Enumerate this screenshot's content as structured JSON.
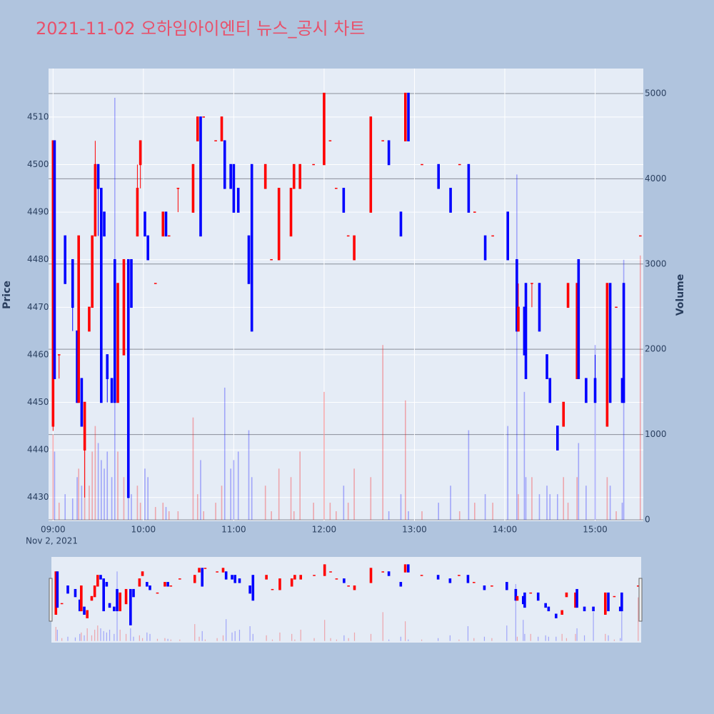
{
  "chart_data": {
    "type": "candlestick",
    "title": "2021-11-02 오하임아이엔티 뉴스_공시 차트",
    "y_label": "Price",
    "y2_label": "Volume",
    "x_sublabel": "Nov 2, 2021",
    "increasing_color": "#ff0000",
    "decreasing_color": "#0000ff",
    "xlim": [
      "08:57",
      "15:32"
    ],
    "xticks": [
      "09:00",
      "10:00",
      "11:00",
      "12:00",
      "13:00",
      "14:00",
      "15:00"
    ],
    "ylim": [
      4425,
      4520.2
    ],
    "yticks": [
      4430,
      4440,
      4450,
      4460,
      4470,
      4480,
      4490,
      4500,
      4510
    ],
    "y2lim": [
      -17,
      5293
    ],
    "y2ticks": [
      0,
      1000,
      2000,
      3000,
      4000,
      5000
    ],
    "x": [
      "09:00",
      "09:01",
      "09:04",
      "09:08",
      "09:13",
      "09:16",
      "09:17",
      "09:19",
      "09:21",
      "09:24",
      "09:26",
      "09:28",
      "09:30",
      "09:32",
      "09:34",
      "09:36",
      "09:39",
      "09:41",
      "09:43",
      "09:47",
      "09:50",
      "09:52",
      "09:56",
      "09:58",
      "10:01",
      "10:03",
      "10:08",
      "10:13",
      "10:15",
      "10:17",
      "10:23",
      "10:33",
      "10:36",
      "10:38",
      "10:40",
      "10:48",
      "10:52",
      "10:54",
      "10:58",
      "11:00",
      "11:03",
      "11:10",
      "11:12",
      "11:21",
      "11:25",
      "11:30",
      "11:38",
      "11:40",
      "11:44",
      "11:53",
      "12:00",
      "12:04",
      "12:08",
      "12:13",
      "12:16",
      "12:20",
      "12:31",
      "12:39",
      "12:43",
      "12:51",
      "12:54",
      "12:56",
      "13:05",
      "13:16",
      "13:24",
      "13:30",
      "13:36",
      "13:40",
      "13:47",
      "13:52",
      "14:02",
      "14:08",
      "14:09",
      "14:13",
      "14:14",
      "14:18",
      "14:23",
      "14:28",
      "14:30",
      "14:35",
      "14:39",
      "14:42",
      "14:48",
      "14:49",
      "14:54",
      "15:00",
      "15:08",
      "15:10",
      "15:14",
      "15:18",
      "15:19",
      "15:30"
    ],
    "open": [
      4445,
      4505,
      4460,
      4485,
      4480,
      4465,
      4450,
      4455,
      4440,
      4465,
      4470,
      4485,
      4500,
      4495,
      4490,
      4460,
      4455,
      4480,
      4450,
      4460,
      4480,
      4480,
      4485,
      4500,
      4490,
      4485,
      4475,
      4485,
      4490,
      4485,
      4495,
      4490,
      4505,
      4510,
      4510,
      4505,
      4505,
      4505,
      4500,
      4500,
      4495,
      4485,
      4500,
      4495,
      4480,
      4480,
      4485,
      4495,
      4495,
      4500,
      4500,
      4505,
      4495,
      4495,
      4485,
      4480,
      4490,
      4505,
      4505,
      4490,
      4505,
      4515,
      4500,
      4500,
      4495,
      4500,
      4500,
      4490,
      4485,
      4485,
      4490,
      4480,
      4465,
      4470,
      4475,
      4475,
      4475,
      4460,
      4455,
      4445,
      4445,
      4470,
      4455,
      4480,
      4455,
      4455,
      4445,
      4475,
      4470,
      4455,
      4475,
      4485
    ],
    "high": [
      4505,
      4505,
      4460,
      4485,
      4480,
      4465,
      4485,
      4455,
      4450,
      4470,
      4485,
      4505,
      4500,
      4495,
      4490,
      4460,
      4455,
      4480,
      4475,
      4480,
      4480,
      4480,
      4500,
      4505,
      4490,
      4485,
      4475,
      4490,
      4490,
      4485,
      4495,
      4500,
      4510,
      4510,
      4510,
      4505,
      4510,
      4505,
      4500,
      4500,
      4495,
      4485,
      4500,
      4500,
      4480,
      4495,
      4495,
      4500,
      4500,
      4500,
      4515,
      4505,
      4495,
      4495,
      4485,
      4485,
      4510,
      4505,
      4505,
      4490,
      4515,
      4515,
      4500,
      4500,
      4495,
      4500,
      4500,
      4490,
      4485,
      4485,
      4490,
      4480,
      4475,
      4470,
      4475,
      4475,
      4475,
      4460,
      4455,
      4445,
      4450,
      4475,
      4475,
      4480,
      4455,
      4460,
      4475,
      4475,
      4470,
      4455,
      4475,
      4485
    ],
    "low": [
      4444,
      4455,
      4455,
      4475,
      4465,
      4450,
      4450,
      4445,
      4430,
      4465,
      4470,
      4485,
      4485,
      4450,
      4485,
      4450,
      4450,
      4450,
      4450,
      4460,
      4430,
      4470,
      4485,
      4495,
      4485,
      4480,
      4475,
      4485,
      4485,
      4485,
      4490,
      4490,
      4505,
      4485,
      4510,
      4505,
      4505,
      4495,
      4495,
      4490,
      4490,
      4475,
      4465,
      4495,
      4480,
      4480,
      4485,
      4495,
      4495,
      4500,
      4500,
      4505,
      4495,
      4490,
      4485,
      4480,
      4490,
      4505,
      4500,
      4485,
      4505,
      4505,
      4500,
      4495,
      4490,
      4500,
      4490,
      4490,
      4480,
      4485,
      4480,
      4465,
      4465,
      4460,
      4455,
      4470,
      4465,
      4455,
      4450,
      4440,
      4445,
      4470,
      4455,
      4455,
      4450,
      4450,
      4445,
      4450,
      4470,
      4450,
      4450,
      4485
    ],
    "close": [
      4505,
      4455,
      4460,
      4475,
      4470,
      4450,
      4485,
      4445,
      4450,
      4470,
      4485,
      4500,
      4495,
      4450,
      4485,
      4455,
      4450,
      4450,
      4475,
      4480,
      4430,
      4470,
      4495,
      4505,
      4485,
      4480,
      4475,
      4490,
      4485,
      4485,
      4495,
      4500,
      4510,
      4485,
      4510,
      4505,
      4510,
      4495,
      4495,
      4490,
      4490,
      4475,
      4465,
      4500,
      4480,
      4495,
      4495,
      4500,
      4500,
      4500,
      4515,
      4505,
      4495,
      4490,
      4485,
      4485,
      4510,
      4505,
      4500,
      4485,
      4515,
      4505,
      4500,
      4495,
      4490,
      4500,
      4490,
      4490,
      4480,
      4485,
      4480,
      4465,
      4470,
      4460,
      4455,
      4475,
      4465,
      4455,
      4450,
      4440,
      4450,
      4475,
      4475,
      4455,
      4450,
      4450,
      4475,
      4450,
      4470,
      4450,
      4450,
      4485
    ],
    "volume": [
      1000,
      800,
      200,
      300,
      250,
      500,
      600,
      400,
      900,
      400,
      800,
      1100,
      900,
      700,
      600,
      800,
      500,
      4950,
      800,
      500,
      900,
      300,
      400,
      200,
      600,
      500,
      150,
      200,
      150,
      100,
      100,
      1200,
      300,
      700,
      100,
      200,
      400,
      1550,
      600,
      700,
      800,
      1050,
      500,
      400,
      100,
      600,
      500,
      100,
      800,
      200,
      1500,
      200,
      100,
      400,
      200,
      600,
      500,
      2050,
      100,
      300,
      1400,
      100,
      100,
      200,
      400,
      100,
      1050,
      200,
      300,
      200,
      1100,
      4050,
      300,
      1500,
      500,
      500,
      300,
      400,
      300,
      300,
      500,
      200,
      500,
      900,
      400,
      2050,
      500,
      400,
      100,
      200,
      3050,
      3100
    ]
  }
}
